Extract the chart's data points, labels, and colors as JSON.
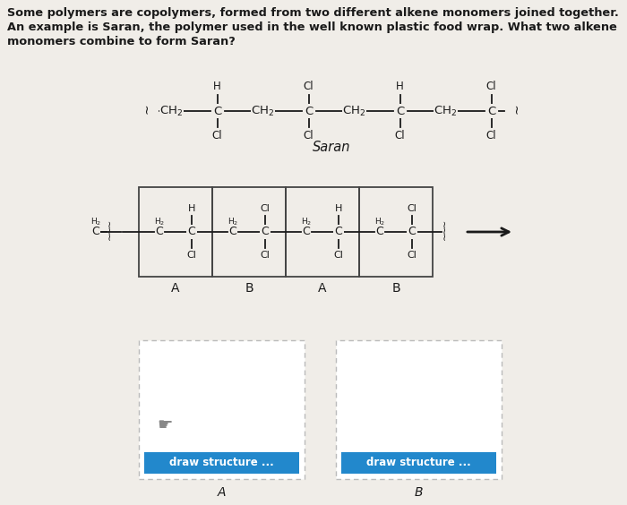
{
  "bg_color": "#f0ede8",
  "text_color": "#1a1a1a",
  "title_line1": "Some polymers are copolymers, formed from two different alkene monomers joined together.",
  "title_line2": "An example is Saran, the polymer used in the well known plastic food wrap. What two alkene",
  "title_line3": "monomers combine to form Saran?",
  "saran_label": "Saran",
  "draw_structure_text": "draw structure ...",
  "draw_btn_color": "#2288cc",
  "draw_btn_text_color": "#ffffff",
  "arrow_color": "#1a1a1a",
  "box_solid_color": "#444444",
  "box_dash_color": "#aaaaaa"
}
